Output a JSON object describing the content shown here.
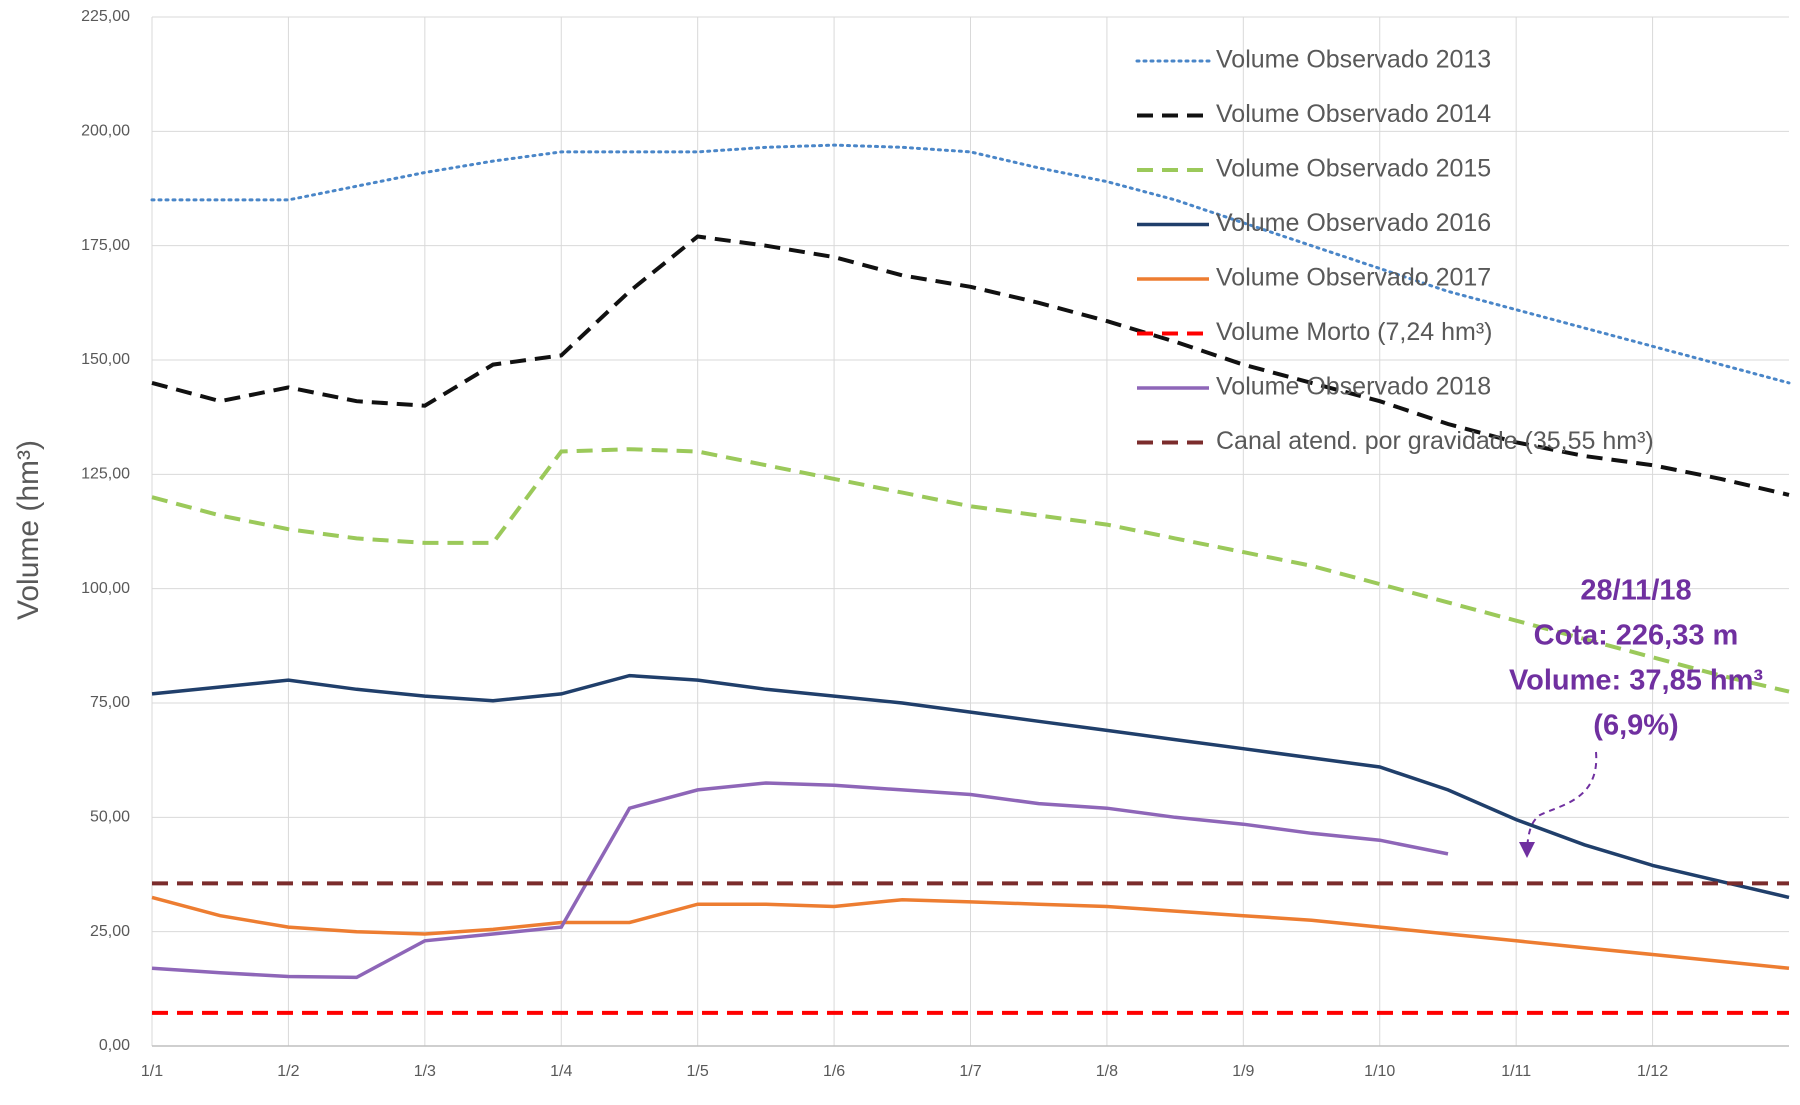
{
  "chart_data": {
    "type": "line",
    "y_label": "Volume (hm³)",
    "categories": [
      "1/1",
      null,
      "1/2",
      null,
      "1/3",
      null,
      "1/4",
      null,
      "1/5",
      null,
      "1/6",
      null,
      "1/7",
      null,
      "1/8",
      null,
      "1/9",
      null,
      "1/10",
      null,
      "1/11",
      null,
      "1/12",
      null,
      null
    ],
    "ylim": [
      0,
      225
    ],
    "yticks": [
      {
        "value": 0,
        "label": "0,00"
      },
      {
        "value": 25,
        "label": "25,00"
      },
      {
        "value": 50,
        "label": "50,00"
      },
      {
        "value": 75,
        "label": "75,00"
      },
      {
        "value": 100,
        "label": "100,00"
      },
      {
        "value": 125,
        "label": "125,00"
      },
      {
        "value": 150,
        "label": "150,00"
      },
      {
        "value": 175,
        "label": "175,00"
      },
      {
        "value": 200,
        "label": "200,00"
      },
      {
        "value": 225,
        "label": "225,00"
      }
    ],
    "grid": true,
    "legend": "upper right",
    "series": [
      {
        "name": "Volume Observado 2013",
        "color": "#4a86c8",
        "style": "dotted",
        "values": [
          185,
          185,
          185,
          188,
          191,
          193.5,
          195.5,
          195.5,
          195.5,
          196.5,
          197,
          196.5,
          195.5,
          192,
          189,
          185,
          180,
          175,
          170,
          165,
          161,
          157,
          153,
          149,
          145
        ]
      },
      {
        "name": "Volume Observado 2014",
        "color": "#111111",
        "style": "dashed",
        "values": [
          145,
          141,
          144,
          141,
          140,
          149,
          151,
          165,
          177,
          175,
          172.5,
          168.5,
          166,
          162.5,
          158.5,
          154,
          149,
          145,
          141,
          136,
          132,
          129,
          127,
          124,
          120.5
        ]
      },
      {
        "name": "Volume Observado 2015",
        "color": "#9bc95a",
        "style": "dashed",
        "values": [
          120,
          116,
          113,
          111,
          110,
          110,
          130,
          130.5,
          130,
          127,
          124,
          121,
          118,
          116,
          114,
          111,
          108,
          105,
          101,
          97,
          93,
          89,
          85,
          81,
          77.5
        ]
      },
      {
        "name": "Volume Observado 2016",
        "color": "#203f6b",
        "style": "solid",
        "values": [
          77,
          78.5,
          80,
          78,
          76.5,
          75.5,
          77,
          81,
          80,
          78,
          76.5,
          75,
          73,
          71,
          69,
          67,
          65,
          63,
          61,
          56,
          49.5,
          44,
          39.5,
          36,
          32.5
        ]
      },
      {
        "name": "Volume Observado 2017",
        "color": "#ed7d31",
        "style": "solid",
        "values": [
          32.5,
          28.5,
          26,
          25,
          24.5,
          25.5,
          27,
          27,
          31,
          31,
          30.5,
          32,
          31.5,
          31,
          30.5,
          29.5,
          28.5,
          27.5,
          26,
          24.5,
          23,
          21.5,
          20,
          18.5,
          17
        ]
      },
      {
        "name": "Volume Morto (7,24 hm³)",
        "color": "#ff0000",
        "style": "dashed",
        "values": [
          7.24,
          7.24,
          7.24,
          7.24,
          7.24,
          7.24,
          7.24,
          7.24,
          7.24,
          7.24,
          7.24,
          7.24,
          7.24,
          7.24,
          7.24,
          7.24,
          7.24,
          7.24,
          7.24,
          7.24,
          7.24,
          7.24,
          7.24,
          7.24,
          7.24
        ]
      },
      {
        "name": "Volume Observado 2018",
        "color": "#8e66b8",
        "style": "solid",
        "values": [
          17,
          16,
          15.2,
          15,
          23,
          24.5,
          26,
          52,
          56,
          57.5,
          57,
          56,
          55,
          53,
          52,
          50,
          48.5,
          46.5,
          45,
          42,
          null,
          null,
          null,
          null,
          null
        ]
      },
      {
        "name": "Canal atend. por gravidade (35,55 hm³)",
        "color": "#7b2c2c",
        "style": "dashed",
        "values": [
          35.55,
          35.55,
          35.55,
          35.55,
          35.55,
          35.55,
          35.55,
          35.55,
          35.55,
          35.55,
          35.55,
          35.55,
          35.55,
          35.55,
          35.55,
          35.55,
          35.55,
          35.55,
          35.55,
          35.55,
          35.55,
          35.55,
          35.55,
          35.55,
          35.55
        ]
      }
    ],
    "annotation": [
      "28/11/18",
      "Cota: 226,33 m",
      "Volume: 37,85 hm³",
      "(6,9%)"
    ]
  }
}
